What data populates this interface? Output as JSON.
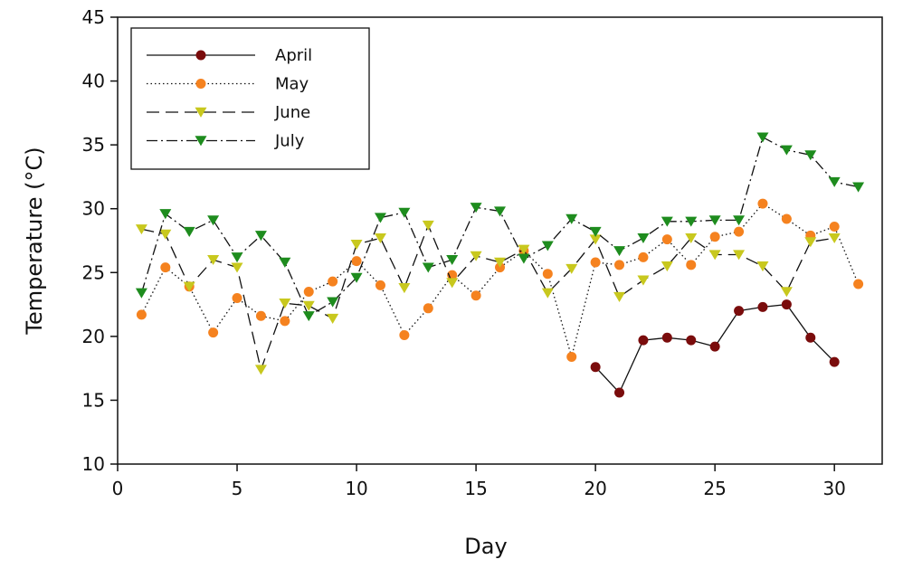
{
  "chart_data": {
    "type": "line",
    "title": "",
    "xlabel": "Day",
    "ylabel": "Temperature (°C)",
    "xlim": [
      0,
      32
    ],
    "ylim": [
      10,
      45
    ],
    "xticks": [
      0,
      5,
      10,
      15,
      20,
      25,
      30
    ],
    "yticks": [
      10,
      15,
      20,
      25,
      30,
      35,
      40,
      45
    ],
    "grid": false,
    "legend_position": "top-left",
    "series": [
      {
        "name": "April",
        "line_style": "solid",
        "marker": "circle",
        "color": "#7a0c0c",
        "x": [
          20,
          21,
          22,
          23,
          24,
          25,
          26,
          27,
          28,
          29,
          30
        ],
        "values": [
          17.6,
          15.6,
          19.7,
          19.9,
          19.7,
          19.2,
          22.0,
          22.3,
          22.5,
          19.9,
          18.0
        ]
      },
      {
        "name": "May",
        "line_style": "dotted",
        "marker": "circle",
        "color": "#f5821f",
        "x": [
          1,
          2,
          3,
          4,
          5,
          6,
          7,
          8,
          9,
          10,
          11,
          12,
          13,
          14,
          15,
          16,
          17,
          18,
          19,
          20,
          21,
          22,
          23,
          24,
          25,
          26,
          27,
          28,
          29,
          30,
          31
        ],
        "values": [
          21.7,
          25.4,
          23.9,
          20.3,
          23.0,
          21.6,
          21.2,
          23.5,
          24.3,
          25.9,
          24.0,
          20.1,
          22.2,
          24.8,
          23.2,
          25.4,
          26.7,
          24.9,
          18.4,
          25.8,
          25.6,
          26.2,
          27.6,
          25.6,
          27.8,
          28.2,
          30.4,
          29.2,
          27.9,
          28.6,
          24.1
        ]
      },
      {
        "name": "June",
        "line_style": "dashed",
        "marker": "triangle-down",
        "color": "#c8c81e",
        "x": [
          1,
          2,
          3,
          4,
          5,
          6,
          7,
          8,
          9,
          10,
          11,
          12,
          13,
          14,
          15,
          16,
          17,
          18,
          19,
          20,
          21,
          22,
          23,
          24,
          25,
          26,
          27,
          28,
          29,
          30
        ],
        "values": [
          28.4,
          28.0,
          23.9,
          26.0,
          25.4,
          17.4,
          22.6,
          22.4,
          21.4,
          27.2,
          27.7,
          23.8,
          28.7,
          24.2,
          26.3,
          25.8,
          26.8,
          23.4,
          25.3,
          27.6,
          23.1,
          24.4,
          25.5,
          27.7,
          26.4,
          26.4,
          25.5,
          23.5,
          27.4,
          27.7
        ]
      },
      {
        "name": "July",
        "line_style": "dash-dot",
        "marker": "triangle-down",
        "color": "#1e8c1e",
        "x": [
          1,
          2,
          3,
          4,
          5,
          6,
          7,
          8,
          9,
          10,
          11,
          12,
          13,
          14,
          15,
          16,
          17,
          18,
          19,
          20,
          21,
          22,
          23,
          24,
          25,
          26,
          27,
          28,
          29,
          30,
          31
        ],
        "values": [
          23.4,
          29.6,
          28.2,
          29.1,
          26.2,
          27.9,
          25.8,
          21.6,
          22.7,
          24.6,
          29.3,
          29.7,
          25.4,
          26.0,
          30.1,
          29.8,
          26.1,
          27.1,
          29.2,
          28.2,
          26.7,
          27.7,
          29.0,
          29.0,
          29.1,
          29.1,
          35.6,
          34.6,
          34.2,
          32.1,
          31.7
        ]
      }
    ]
  }
}
